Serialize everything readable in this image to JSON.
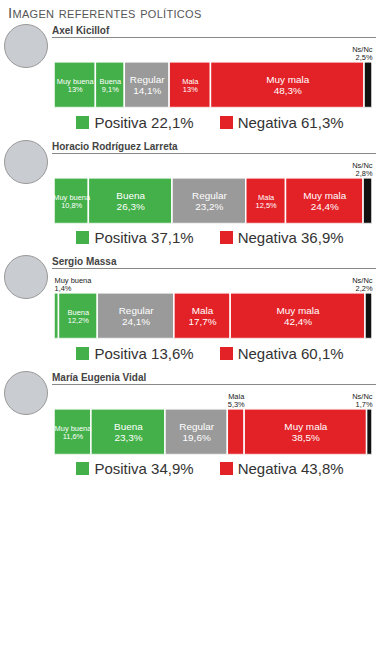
{
  "title": "Imagen referentes políticos",
  "chart_data": [
    {
      "type": "bar",
      "title": "Axel Kicillof",
      "orientation": "horizontal",
      "stacked": true,
      "data_labels": true,
      "tick_labels": false,
      "xlim": [
        0,
        100
      ],
      "categories": [
        "Muy buena",
        "Buena",
        "Regular",
        "Mala",
        "Muy mala",
        "Ns/Nc"
      ],
      "values": [
        13,
        9.1,
        14.1,
        13,
        48.3,
        2.5
      ],
      "value_labels": [
        "13%",
        "9,1%",
        "14,1%",
        "13%",
        "48,3%",
        "2,5%"
      ],
      "colors": [
        "#43b049",
        "#43b049",
        "#9a9a9a",
        "#e32227",
        "#e32227",
        "#111111"
      ],
      "annotations": [
        {
          "text": "Positiva 22,1%",
          "color": "#43b049"
        },
        {
          "text": "Negativa 61,3%",
          "color": "#e32227"
        }
      ]
    },
    {
      "type": "bar",
      "title": "Horacio Rodríguez Larreta",
      "orientation": "horizontal",
      "stacked": true,
      "data_labels": true,
      "tick_labels": false,
      "xlim": [
        0,
        100
      ],
      "categories": [
        "Muy buena",
        "Buena",
        "Regular",
        "Mala",
        "Muy mala",
        "Ns/Nc"
      ],
      "values": [
        10.8,
        26.3,
        23.2,
        12.5,
        24.4,
        2.8
      ],
      "value_labels": [
        "10,8%",
        "26,3%",
        "23,2%",
        "12,5%",
        "24,4%",
        "2,8%"
      ],
      "colors": [
        "#43b049",
        "#43b049",
        "#9a9a9a",
        "#e32227",
        "#e32227",
        "#111111"
      ],
      "annotations": [
        {
          "text": "Positiva 37,1%",
          "color": "#43b049"
        },
        {
          "text": "Negativa 36,9%",
          "color": "#e32227"
        }
      ]
    },
    {
      "type": "bar",
      "title": "Sergio Massa",
      "orientation": "horizontal",
      "stacked": true,
      "data_labels": true,
      "tick_labels": false,
      "xlim": [
        0,
        100
      ],
      "categories": [
        "Muy buena",
        "Buena",
        "Regular",
        "Mala",
        "Muy mala",
        "Ns/Nc"
      ],
      "values": [
        1.4,
        12.2,
        24.1,
        17.7,
        42.4,
        2.2
      ],
      "value_labels": [
        "1,4%",
        "12,2%",
        "24,1%",
        "17,7%",
        "42,4%",
        "2,2%"
      ],
      "colors": [
        "#43b049",
        "#43b049",
        "#9a9a9a",
        "#e32227",
        "#e32227",
        "#111111"
      ],
      "annotations": [
        {
          "text": "Positiva 13,6%",
          "color": "#43b049"
        },
        {
          "text": "Negativa 60,1%",
          "color": "#e32227"
        }
      ]
    },
    {
      "type": "bar",
      "title": "María Eugenia Vidal",
      "orientation": "horizontal",
      "stacked": true,
      "data_labels": true,
      "tick_labels": false,
      "xlim": [
        0,
        100
      ],
      "categories": [
        "Muy buena",
        "Buena",
        "Regular",
        "Mala",
        "Muy mala",
        "Ns/Nc"
      ],
      "values": [
        11.6,
        23.3,
        19.6,
        5.3,
        38.5,
        1.7
      ],
      "value_labels": [
        "11,6%",
        "23,3%",
        "19,6%",
        "5,3%",
        "38,5%",
        "1,7%"
      ],
      "colors": [
        "#43b049",
        "#43b049",
        "#9a9a9a",
        "#e32227",
        "#e32227",
        "#111111"
      ],
      "annotations": [
        {
          "text": "Positiva 34,9%",
          "color": "#43b049"
        },
        {
          "text": "Negativa 43,8%",
          "color": "#e32227"
        }
      ]
    }
  ]
}
